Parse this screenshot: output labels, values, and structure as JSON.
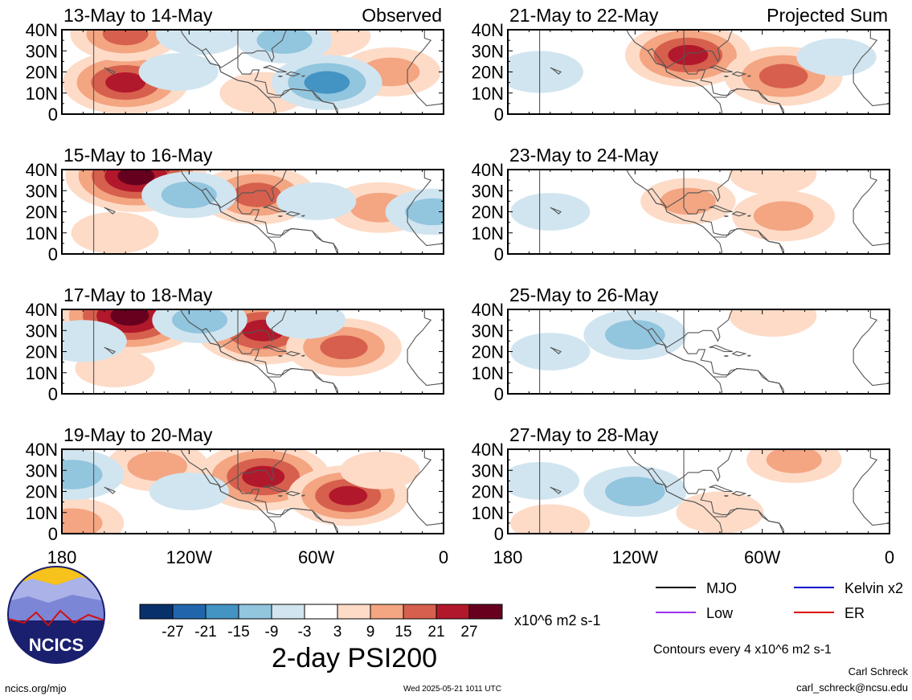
{
  "chart_data": {
    "type": "heatmap",
    "title": "2-day PSI200",
    "units": "x10^6 m2 s-1",
    "colorbar": {
      "tick_labels": [
        "-27",
        "-21",
        "-15",
        "-9",
        "-3",
        "3",
        "9",
        "15",
        "21",
        "27"
      ],
      "colors": [
        "#08306b",
        "#2166ac",
        "#4393c3",
        "#92c5de",
        "#d1e5f0",
        "#ffffff",
        "#fddbc7",
        "#f4a582",
        "#d6604d",
        "#b2182b",
        "#67001f"
      ]
    },
    "x_ticks": [
      "180",
      "120W",
      "60W",
      "0"
    ],
    "x_range": [
      -180,
      0
    ],
    "y_ticks": [
      "40N",
      "30N",
      "20N",
      "10N",
      "0"
    ],
    "y_range": [
      0,
      40
    ],
    "column_headers": [
      "Observed",
      "Projected Sum"
    ],
    "panels": [
      {
        "date_range": "13-May to 14-May",
        "column": "Observed",
        "anomalies": [
          {
            "lon": -150,
            "lat": 15,
            "value": 24
          },
          {
            "lon": -150,
            "lat": 38,
            "value": 18
          },
          {
            "lon": -55,
            "lat": 37,
            "value": 9
          },
          {
            "lon": -25,
            "lat": 20,
            "value": 14
          },
          {
            "lon": -85,
            "lat": 10,
            "value": 9
          },
          {
            "lon": -55,
            "lat": 15,
            "value": -18
          },
          {
            "lon": -115,
            "lat": 38,
            "value": -9
          },
          {
            "lon": -75,
            "lat": 35,
            "value": -12
          },
          {
            "lon": -125,
            "lat": 20,
            "value": -6
          }
        ]
      },
      {
        "date_range": "15-May to 16-May",
        "column": "Observed",
        "anomalies": [
          {
            "lon": -145,
            "lat": 37,
            "value": 30
          },
          {
            "lon": -88,
            "lat": 28,
            "value": 21
          },
          {
            "lon": -30,
            "lat": 22,
            "value": 15
          },
          {
            "lon": -155,
            "lat": 10,
            "value": 9
          },
          {
            "lon": -120,
            "lat": 28,
            "value": -12
          },
          {
            "lon": -60,
            "lat": 25,
            "value": -6
          },
          {
            "lon": -5,
            "lat": 20,
            "value": -12
          }
        ]
      },
      {
        "date_range": "17-May to 18-May",
        "column": "Observed",
        "anomalies": [
          {
            "lon": -148,
            "lat": 37,
            "value": 33
          },
          {
            "lon": -85,
            "lat": 30,
            "value": 27
          },
          {
            "lon": -47,
            "lat": 22,
            "value": 20
          },
          {
            "lon": -155,
            "lat": 12,
            "value": 6
          },
          {
            "lon": -115,
            "lat": 35,
            "value": -12
          },
          {
            "lon": -170,
            "lat": 25,
            "value": -9
          },
          {
            "lon": -65,
            "lat": 35,
            "value": -6
          }
        ]
      },
      {
        "date_range": "19-May to 20-May",
        "column": "Observed",
        "anomalies": [
          {
            "lon": -85,
            "lat": 27,
            "value": 27
          },
          {
            "lon": -45,
            "lat": 18,
            "value": 22
          },
          {
            "lon": -175,
            "lat": 5,
            "value": 15
          },
          {
            "lon": -135,
            "lat": 32,
            "value": 15
          },
          {
            "lon": -175,
            "lat": 28,
            "value": -15
          },
          {
            "lon": -120,
            "lat": 20,
            "value": -6
          },
          {
            "lon": -30,
            "lat": 30,
            "value": 6
          }
        ]
      },
      {
        "date_range": "21-May to 22-May",
        "column": "Projected Sum",
        "anomalies": [
          {
            "lon": -95,
            "lat": 28,
            "value": 24
          },
          {
            "lon": -50,
            "lat": 18,
            "value": 21
          },
          {
            "lon": -165,
            "lat": 20,
            "value": -9
          },
          {
            "lon": -25,
            "lat": 27,
            "value": -6
          },
          {
            "lon": -130,
            "lat": 5,
            "value": -3
          }
        ]
      },
      {
        "date_range": "23-May to 24-May",
        "column": "Projected Sum",
        "anomalies": [
          {
            "lon": -95,
            "lat": 25,
            "value": 12
          },
          {
            "lon": -50,
            "lat": 18,
            "value": 15
          },
          {
            "lon": -55,
            "lat": 38,
            "value": 9
          },
          {
            "lon": -160,
            "lat": 20,
            "value": -6
          }
        ]
      },
      {
        "date_range": "25-May to 26-May",
        "column": "Projected Sum",
        "anomalies": [
          {
            "lon": -120,
            "lat": 28,
            "value": -15
          },
          {
            "lon": -55,
            "lat": 37,
            "value": 9
          },
          {
            "lon": -50,
            "lat": 18,
            "value": 3
          },
          {
            "lon": -160,
            "lat": 20,
            "value": -6
          }
        ]
      },
      {
        "date_range": "27-May to 28-May",
        "column": "Projected Sum",
        "anomalies": [
          {
            "lon": -120,
            "lat": 20,
            "value": -15
          },
          {
            "lon": -45,
            "lat": 35,
            "value": 12
          },
          {
            "lon": -80,
            "lat": 10,
            "value": 9
          },
          {
            "lon": -165,
            "lat": 25,
            "value": -6
          },
          {
            "lon": -160,
            "lat": 5,
            "value": 6
          }
        ]
      }
    ],
    "legend": [
      {
        "name": "MJO",
        "color": "#000000"
      },
      {
        "name": "Kelvin x2",
        "color": "#0000cc"
      },
      {
        "name": "Low",
        "color": "#9b30e8"
      },
      {
        "name": "ER",
        "color": "#dd0000"
      }
    ],
    "contour_note": "Contours every 4 x10^6 m2 s-1"
  },
  "footer": {
    "logo_text": "NCICS",
    "website": "ncics.org/mjo",
    "timestamp": "Wed 2025-05-21 1011 UTC",
    "author": "Carl Schreck",
    "email": "carl_schreck@ncsu.edu"
  }
}
